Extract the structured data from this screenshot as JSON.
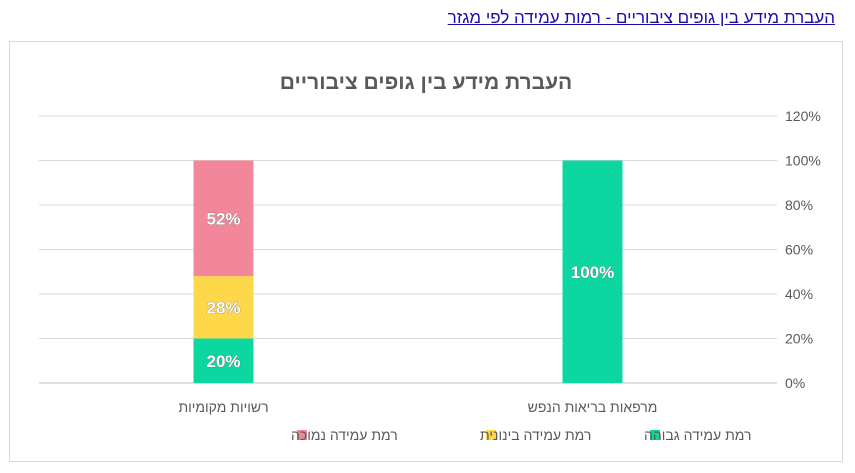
{
  "header": {
    "link_text": "העברת מידע בין גופים ציבוריים - רמות עמידה לפי מגזר"
  },
  "chart_data": {
    "type": "bar",
    "stacked": true,
    "title": "העברת מידע בין גופים ציבוריים",
    "xlabel": "",
    "ylabel": "",
    "ylim": [
      0,
      120
    ],
    "y_ticks": [
      0,
      20,
      40,
      60,
      80,
      100,
      120
    ],
    "y_tick_format": "percent",
    "y_axis_position": "right",
    "grid": true,
    "categories": [
      "מרפאות בריאות הנפש",
      "רשויות מקומיות"
    ],
    "series": [
      {
        "name": "רמת עמידה גבוהה",
        "values": [
          100,
          20
        ],
        "color": "#0dd7a0"
      },
      {
        "name": "רמת עמידה בינונית",
        "values": [
          0,
          28
        ],
        "color": "#ffd84a"
      },
      {
        "name": "רמת עמידה נמוכה",
        "values": [
          0,
          52
        ],
        "color": "#f2879a"
      }
    ],
    "legend_position": "bottom"
  }
}
